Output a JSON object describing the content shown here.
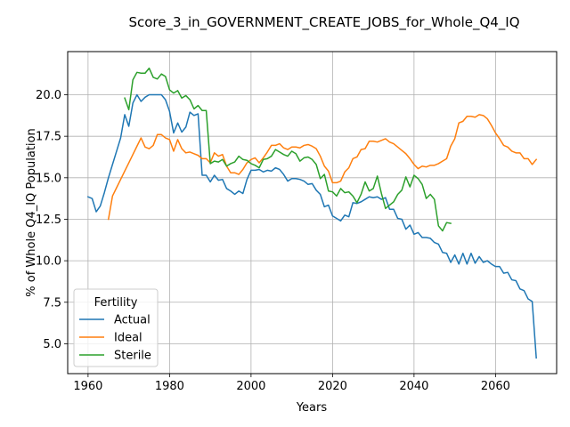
{
  "chart_data": {
    "type": "line",
    "title": "Score_3_in_GOVERNMENT_CREATE_JOBS_for_Whole_Q4_IQ",
    "xlabel": "Years",
    "ylabel": "% of Whole Q4_IQ Population",
    "xlim": [
      1955,
      2075
    ],
    "ylim": [
      3.2,
      22.6
    ],
    "xticks": [
      1960,
      1980,
      2000,
      2020,
      2040,
      2060
    ],
    "yticks": [
      5.0,
      7.5,
      10.0,
      12.5,
      15.0,
      17.5,
      20.0
    ],
    "ytick_labels": [
      "5.0",
      "7.5",
      "10.0",
      "12.5",
      "15.0",
      "17.5",
      "20.0"
    ],
    "grid": true,
    "legend": {
      "title": "Fertility",
      "placement": "lower-left"
    },
    "series": [
      {
        "name": "Actual",
        "color": "#1f77b4",
        "x": [
          1960,
          1961,
          1962,
          1963,
          1964,
          1965,
          1966,
          1967,
          1968,
          1969,
          1970,
          1971,
          1972,
          1973,
          1974,
          1975,
          1976,
          1977,
          1978,
          1979,
          1980,
          1981,
          1982,
          1983,
          1984,
          1985,
          1986,
          1987,
          1988,
          1989,
          1990,
          1991,
          1992,
          1993,
          1994,
          1995,
          1996,
          1997,
          1998,
          1999,
          2000,
          2001,
          2002,
          2003,
          2004,
          2005,
          2006,
          2007,
          2008,
          2009,
          2010,
          2011,
          2012,
          2013,
          2014,
          2015,
          2016,
          2017,
          2018,
          2019,
          2020,
          2021,
          2022,
          2023,
          2024,
          2025,
          2026,
          2027,
          2028,
          2029,
          2030,
          2031,
          2032,
          2033,
          2034,
          2035,
          2036,
          2037,
          2038,
          2039,
          2040,
          2041,
          2042,
          2043,
          2044,
          2045,
          2046,
          2047,
          2048,
          2049,
          2050,
          2051,
          2052,
          2053,
          2054,
          2055,
          2056,
          2057,
          2058,
          2059,
          2060,
          2061,
          2062,
          2063,
          2064,
          2065,
          2066,
          2067,
          2068,
          2069,
          2070
        ],
        "y": [
          13.85,
          13.75,
          12.95,
          13.3,
          14.1,
          15.0,
          15.8,
          16.6,
          17.4,
          18.8,
          18.1,
          19.5,
          20.0,
          19.6,
          19.85,
          20.0,
          20.0,
          20.0,
          20.0,
          19.7,
          19.0,
          17.7,
          18.3,
          17.75,
          18.05,
          18.95,
          18.75,
          18.85,
          15.15,
          15.15,
          14.75,
          15.15,
          14.85,
          14.9,
          14.35,
          14.2,
          14.0,
          14.2,
          14.05,
          14.9,
          15.45,
          15.45,
          15.5,
          15.35,
          15.45,
          15.4,
          15.6,
          15.5,
          15.2,
          14.8,
          14.95,
          14.95,
          14.9,
          14.8,
          14.6,
          14.65,
          14.25,
          14.0,
          13.25,
          13.35,
          12.7,
          12.55,
          12.4,
          12.75,
          12.65,
          13.5,
          13.45,
          13.55,
          13.7,
          13.85,
          13.8,
          13.85,
          13.7,
          13.8,
          13.1,
          13.1,
          12.55,
          12.5,
          11.9,
          12.15,
          11.6,
          11.7,
          11.4,
          11.4,
          11.35,
          11.1,
          11.0,
          10.5,
          10.45,
          9.9,
          10.35,
          9.8,
          10.45,
          9.8,
          10.45,
          9.85,
          10.25,
          9.9,
          10.0,
          9.8,
          9.65,
          9.65,
          9.25,
          9.3,
          8.85,
          8.8,
          8.3,
          8.2,
          7.7,
          7.55,
          4.15
        ]
      },
      {
        "name": "Ideal",
        "color": "#ff7f0e",
        "x": [
          1965,
          1966,
          1967,
          1968,
          1969,
          1970,
          1971,
          1972,
          1973,
          1974,
          1975,
          1976,
          1977,
          1978,
          1979,
          1980,
          1981,
          1982,
          1983,
          1984,
          1985,
          1986,
          1987,
          1988,
          1989,
          1990,
          1991,
          1992,
          1993,
          1994,
          1995,
          1996,
          1997,
          1998,
          1999,
          2000,
          2001,
          2002,
          2003,
          2004,
          2005,
          2006,
          2007,
          2008,
          2009,
          2010,
          2011,
          2012,
          2013,
          2014,
          2015,
          2016,
          2017,
          2018,
          2019,
          2020,
          2021,
          2022,
          2023,
          2024,
          2025,
          2026,
          2027,
          2028,
          2029,
          2030,
          2031,
          2032,
          2033,
          2034,
          2035,
          2036,
          2037,
          2038,
          2039,
          2040,
          2041,
          2042,
          2043,
          2044,
          2045,
          2046,
          2047,
          2048,
          2049,
          2050,
          2051,
          2052,
          2053,
          2054,
          2055,
          2056,
          2057,
          2058,
          2059,
          2060,
          2061,
          2062,
          2063,
          2064,
          2065,
          2066,
          2067,
          2068,
          2069,
          2070
        ],
        "y": [
          12.5,
          13.9,
          14.4,
          14.9,
          15.4,
          15.9,
          16.4,
          16.9,
          17.4,
          16.85,
          16.75,
          16.95,
          17.6,
          17.6,
          17.4,
          17.3,
          16.6,
          17.3,
          16.75,
          16.5,
          16.55,
          16.45,
          16.35,
          16.15,
          16.15,
          15.9,
          16.5,
          16.3,
          16.4,
          15.7,
          15.3,
          15.3,
          15.2,
          15.5,
          15.9,
          16.1,
          16.2,
          15.9,
          16.2,
          16.55,
          16.95,
          16.95,
          17.05,
          16.8,
          16.7,
          16.85,
          16.85,
          16.8,
          16.95,
          17.0,
          16.9,
          16.75,
          16.3,
          15.7,
          15.4,
          14.7,
          14.7,
          14.8,
          15.35,
          15.6,
          16.15,
          16.25,
          16.7,
          16.75,
          17.2,
          17.2,
          17.15,
          17.25,
          17.35,
          17.15,
          17.05,
          16.85,
          16.65,
          16.45,
          16.15,
          15.8,
          15.55,
          15.7,
          15.65,
          15.75,
          15.75,
          15.85,
          16.0,
          16.15,
          16.9,
          17.35,
          18.3,
          18.4,
          18.7,
          18.7,
          18.65,
          18.8,
          18.75,
          18.55,
          18.15,
          17.7,
          17.35,
          16.95,
          16.85,
          16.6,
          16.5,
          16.5,
          16.15,
          16.15,
          15.8,
          16.1
        ]
      },
      {
        "name": "Sterile",
        "color": "#2ca02c",
        "x": [
          1969,
          1970,
          1971,
          1972,
          1973,
          1974,
          1975,
          1976,
          1977,
          1978,
          1979,
          1980,
          1981,
          1982,
          1983,
          1984,
          1985,
          1986,
          1987,
          1988,
          1989,
          1990,
          1991,
          1992,
          1993,
          1994,
          1995,
          1996,
          1997,
          1998,
          1999,
          2000,
          2001,
          2002,
          2003,
          2004,
          2005,
          2006,
          2007,
          2008,
          2009,
          2010,
          2011,
          2012,
          2013,
          2014,
          2015,
          2016,
          2017,
          2018,
          2019,
          2020,
          2021,
          2022,
          2023,
          2024,
          2025,
          2026,
          2027,
          2028,
          2029,
          2030,
          2031,
          2032,
          2033,
          2034,
          2035,
          2036,
          2037,
          2038,
          2039,
          2040,
          2041,
          2042,
          2043,
          2044,
          2045,
          2046,
          2047,
          2048,
          2049
        ],
        "y": [
          19.8,
          19.1,
          20.9,
          21.35,
          21.3,
          21.3,
          21.6,
          21.05,
          20.95,
          21.25,
          21.1,
          20.3,
          20.1,
          20.25,
          19.8,
          19.95,
          19.7,
          19.15,
          19.35,
          19.05,
          19.05,
          15.85,
          16.0,
          15.95,
          16.1,
          15.7,
          15.85,
          15.95,
          16.3,
          16.1,
          16.05,
          15.85,
          15.75,
          15.6,
          16.1,
          16.15,
          16.3,
          16.7,
          16.55,
          16.4,
          16.3,
          16.6,
          16.45,
          16.0,
          16.2,
          16.25,
          16.1,
          15.8,
          14.95,
          15.2,
          14.2,
          14.15,
          13.9,
          14.35,
          14.1,
          14.15,
          13.9,
          13.5,
          14.0,
          14.75,
          14.2,
          14.35,
          15.1,
          14.05,
          13.15,
          13.35,
          13.55,
          14.0,
          14.25,
          15.05,
          14.45,
          15.15,
          14.95,
          14.6,
          13.75,
          14.0,
          13.7,
          12.1,
          11.8,
          12.3,
          12.25
        ]
      }
    ]
  }
}
